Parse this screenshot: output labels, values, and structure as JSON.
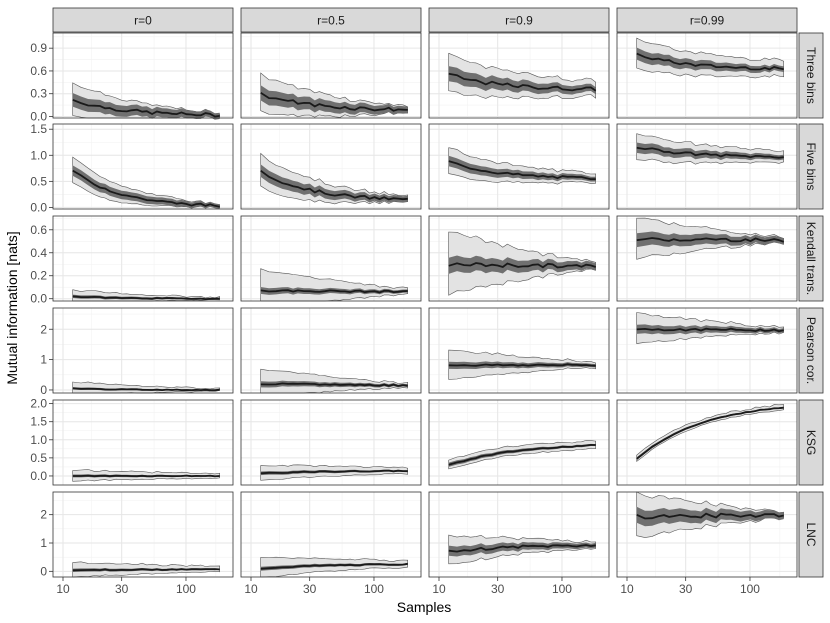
{
  "chart_data": {
    "type": "line",
    "xlabel": "Samples",
    "ylabel": "Mutual information [nats]",
    "x_scale": "log",
    "x_range": [
      10,
      200
    ],
    "x_ticks": [
      10,
      30,
      100
    ],
    "columns": [
      "r=0",
      "r=0.5",
      "r=0.9",
      "r=0.99"
    ],
    "rows": [
      {
        "name": "Three bins",
        "ylim": [
          -0.02,
          1.1
        ],
        "ticks": [
          0.0,
          0.3,
          0.6,
          0.9
        ],
        "tick_labels": [
          "0.0",
          "0.3",
          "0.6",
          "0.9"
        ],
        "series": [
          {
            "median_start": 0.22,
            "median_end": 0.02,
            "shape": "decay",
            "inner_half": 0.09,
            "outer_half": 0.22,
            "outer_half_end": 0.02
          },
          {
            "median_start": 0.3,
            "median_end": 0.09,
            "shape": "decay",
            "inner_half": 0.1,
            "outer_half": 0.25,
            "outer_half_end": 0.04
          },
          {
            "median_start": 0.55,
            "median_end": 0.36,
            "shape": "decay",
            "inner_half": 0.1,
            "outer_half": 0.25,
            "outer_half_end": 0.1
          },
          {
            "median_start": 0.82,
            "median_end": 0.63,
            "shape": "decay",
            "inner_half": 0.08,
            "outer_half": 0.2,
            "outer_half_end": 0.1
          }
        ]
      },
      {
        "name": "Five bins",
        "ylim": [
          -0.03,
          1.6
        ],
        "ticks": [
          0.0,
          0.5,
          1.0,
          1.5
        ],
        "tick_labels": [
          "0.0",
          "0.5",
          "1.0",
          "1.5"
        ],
        "series": [
          {
            "median_start": 0.7,
            "median_end": 0.03,
            "shape": "decay",
            "inner_half": 0.1,
            "outer_half": 0.25,
            "outer_half_end": 0.02
          },
          {
            "median_start": 0.7,
            "median_end": 0.15,
            "shape": "decay",
            "inner_half": 0.12,
            "outer_half": 0.32,
            "outer_half_end": 0.05
          },
          {
            "median_start": 0.88,
            "median_end": 0.56,
            "shape": "decay",
            "inner_half": 0.1,
            "outer_half": 0.25,
            "outer_half_end": 0.08
          },
          {
            "median_start": 1.17,
            "median_end": 0.97,
            "shape": "decay",
            "inner_half": 0.1,
            "outer_half": 0.25,
            "outer_half_end": 0.1
          }
        ]
      },
      {
        "name": "Kendall trans.",
        "ylim": [
          -0.02,
          0.72
        ],
        "ticks": [
          0.0,
          0.2,
          0.4,
          0.6
        ],
        "tick_labels": [
          "0.0",
          "0.2",
          "0.4",
          "0.6"
        ],
        "series": [
          {
            "median_start": 0.02,
            "median_end": 0.0,
            "shape": "decay",
            "inner_half": 0.015,
            "outer_half": 0.05,
            "outer_half_end": 0.005
          },
          {
            "median_start": 0.07,
            "median_end": 0.06,
            "shape": "flat",
            "inner_half": 0.03,
            "outer_half": 0.18,
            "outer_half_end": 0.02
          },
          {
            "median_start": 0.3,
            "median_end": 0.28,
            "shape": "flat",
            "inner_half": 0.07,
            "outer_half": 0.28,
            "outer_half_end": 0.03
          },
          {
            "median_start": 0.52,
            "median_end": 0.51,
            "shape": "flat",
            "inner_half": 0.06,
            "outer_half": 0.18,
            "outer_half_end": 0.02
          }
        ]
      },
      {
        "name": "Pearson cor.",
        "ylim": [
          -0.1,
          2.7
        ],
        "ticks": [
          0,
          1,
          2
        ],
        "tick_labels": [
          "0",
          "1",
          "2"
        ],
        "series": [
          {
            "median_start": 0.05,
            "median_end": 0.0,
            "shape": "decay",
            "inner_half": 0.04,
            "outer_half": 0.2,
            "outer_half_end": 0.02
          },
          {
            "median_start": 0.2,
            "median_end": 0.15,
            "shape": "flat",
            "inner_half": 0.1,
            "outer_half": 0.45,
            "outer_half_end": 0.06
          },
          {
            "median_start": 0.82,
            "median_end": 0.82,
            "shape": "flat",
            "inner_half": 0.12,
            "outer_half": 0.5,
            "outer_half_end": 0.08
          },
          {
            "median_start": 2.0,
            "median_end": 1.97,
            "shape": "flat",
            "inner_half": 0.15,
            "outer_half": 0.5,
            "outer_half_end": 0.07
          }
        ]
      },
      {
        "name": "KSG",
        "ylim": [
          -0.25,
          2.1
        ],
        "ticks": [
          0.0,
          0.5,
          1.0,
          1.5,
          2.0
        ],
        "tick_labels": [
          "0.0",
          "0.5",
          "1.0",
          "1.5",
          "2.0"
        ],
        "series": [
          {
            "median_start": 0.0,
            "median_end": 0.0,
            "shape": "flat",
            "inner_half": 0.04,
            "outer_half": 0.14,
            "outer_half_end": 0.05
          },
          {
            "median_start": 0.07,
            "median_end": 0.14,
            "shape": "grow",
            "inner_half": 0.05,
            "outer_half": 0.2,
            "outer_half_end": 0.07
          },
          {
            "median_start": 0.3,
            "median_end": 0.85,
            "shape": "grow",
            "inner_half": 0.06,
            "outer_half": 0.12,
            "outer_half_end": 0.1
          },
          {
            "median_start": 0.48,
            "median_end": 1.9,
            "shape": "grow",
            "inner_half": 0.04,
            "outer_half": 0.07,
            "outer_half_end": 0.06
          }
        ]
      },
      {
        "name": "LNC",
        "ylim": [
          -0.2,
          2.8
        ],
        "ticks": [
          0,
          1,
          2
        ],
        "tick_labels": [
          "0",
          "1",
          "2"
        ],
        "series": [
          {
            "median_start": 0.05,
            "median_end": 0.07,
            "shape": "flat",
            "inner_half": 0.06,
            "outer_half": 0.25,
            "outer_half_end": 0.08
          },
          {
            "median_start": 0.1,
            "median_end": 0.25,
            "shape": "grow",
            "inner_half": 0.07,
            "outer_half": 0.35,
            "outer_half_end": 0.1
          },
          {
            "median_start": 0.7,
            "median_end": 0.92,
            "shape": "grow",
            "inner_half": 0.18,
            "outer_half": 0.5,
            "outer_half_end": 0.1
          },
          {
            "median_start": 1.93,
            "median_end": 2.0,
            "shape": "flat",
            "inner_half": 0.28,
            "outer_half": 0.8,
            "outer_half_end": 0.1
          }
        ]
      }
    ]
  }
}
